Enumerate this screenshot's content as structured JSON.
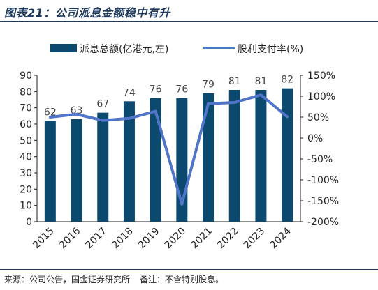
{
  "figure": {
    "title": "图表21：公司派息金额稳中有升",
    "source": "来源：公司公告，国金证券研究所",
    "note": "备注：不含特别股息。"
  },
  "colors": {
    "bar": "#0b4a6e",
    "line": "#4f74c8",
    "axis": "#222222",
    "rule": "#1f3a5c"
  },
  "chart_data": {
    "type": "bar",
    "categories": [
      "2015",
      "2016",
      "2017",
      "2018",
      "2019",
      "2020",
      "2021",
      "2022",
      "2023",
      "2024"
    ],
    "series": [
      {
        "name": "派息总额(亿港元,左)",
        "type": "bar",
        "axis": "left",
        "values": [
          62,
          63,
          67,
          74,
          76,
          76,
          79,
          81,
          81,
          82
        ]
      },
      {
        "name": "股利支付率(%)",
        "type": "line",
        "axis": "right",
        "values": [
          50,
          57,
          42,
          47,
          64,
          -158,
          82,
          85,
          103,
          51
        ]
      }
    ],
    "y_left": {
      "min": 0,
      "max": 90,
      "ticks": [
        0,
        10,
        20,
        30,
        40,
        50,
        60,
        70,
        80,
        90
      ]
    },
    "y_right": {
      "min": -200,
      "max": 150,
      "ticks": [
        -200,
        -150,
        -100,
        -50,
        0,
        50,
        100,
        150
      ],
      "tick_labels": [
        "-200%",
        "-150%",
        "-100%",
        "-50%",
        "0%",
        "50%",
        "100%",
        "150%"
      ]
    },
    "data_labels": [
      "62",
      "63",
      "67",
      "74",
      "76",
      "76",
      "79",
      "81",
      "81",
      "82"
    ],
    "legend_position": "top",
    "grid": false
  }
}
